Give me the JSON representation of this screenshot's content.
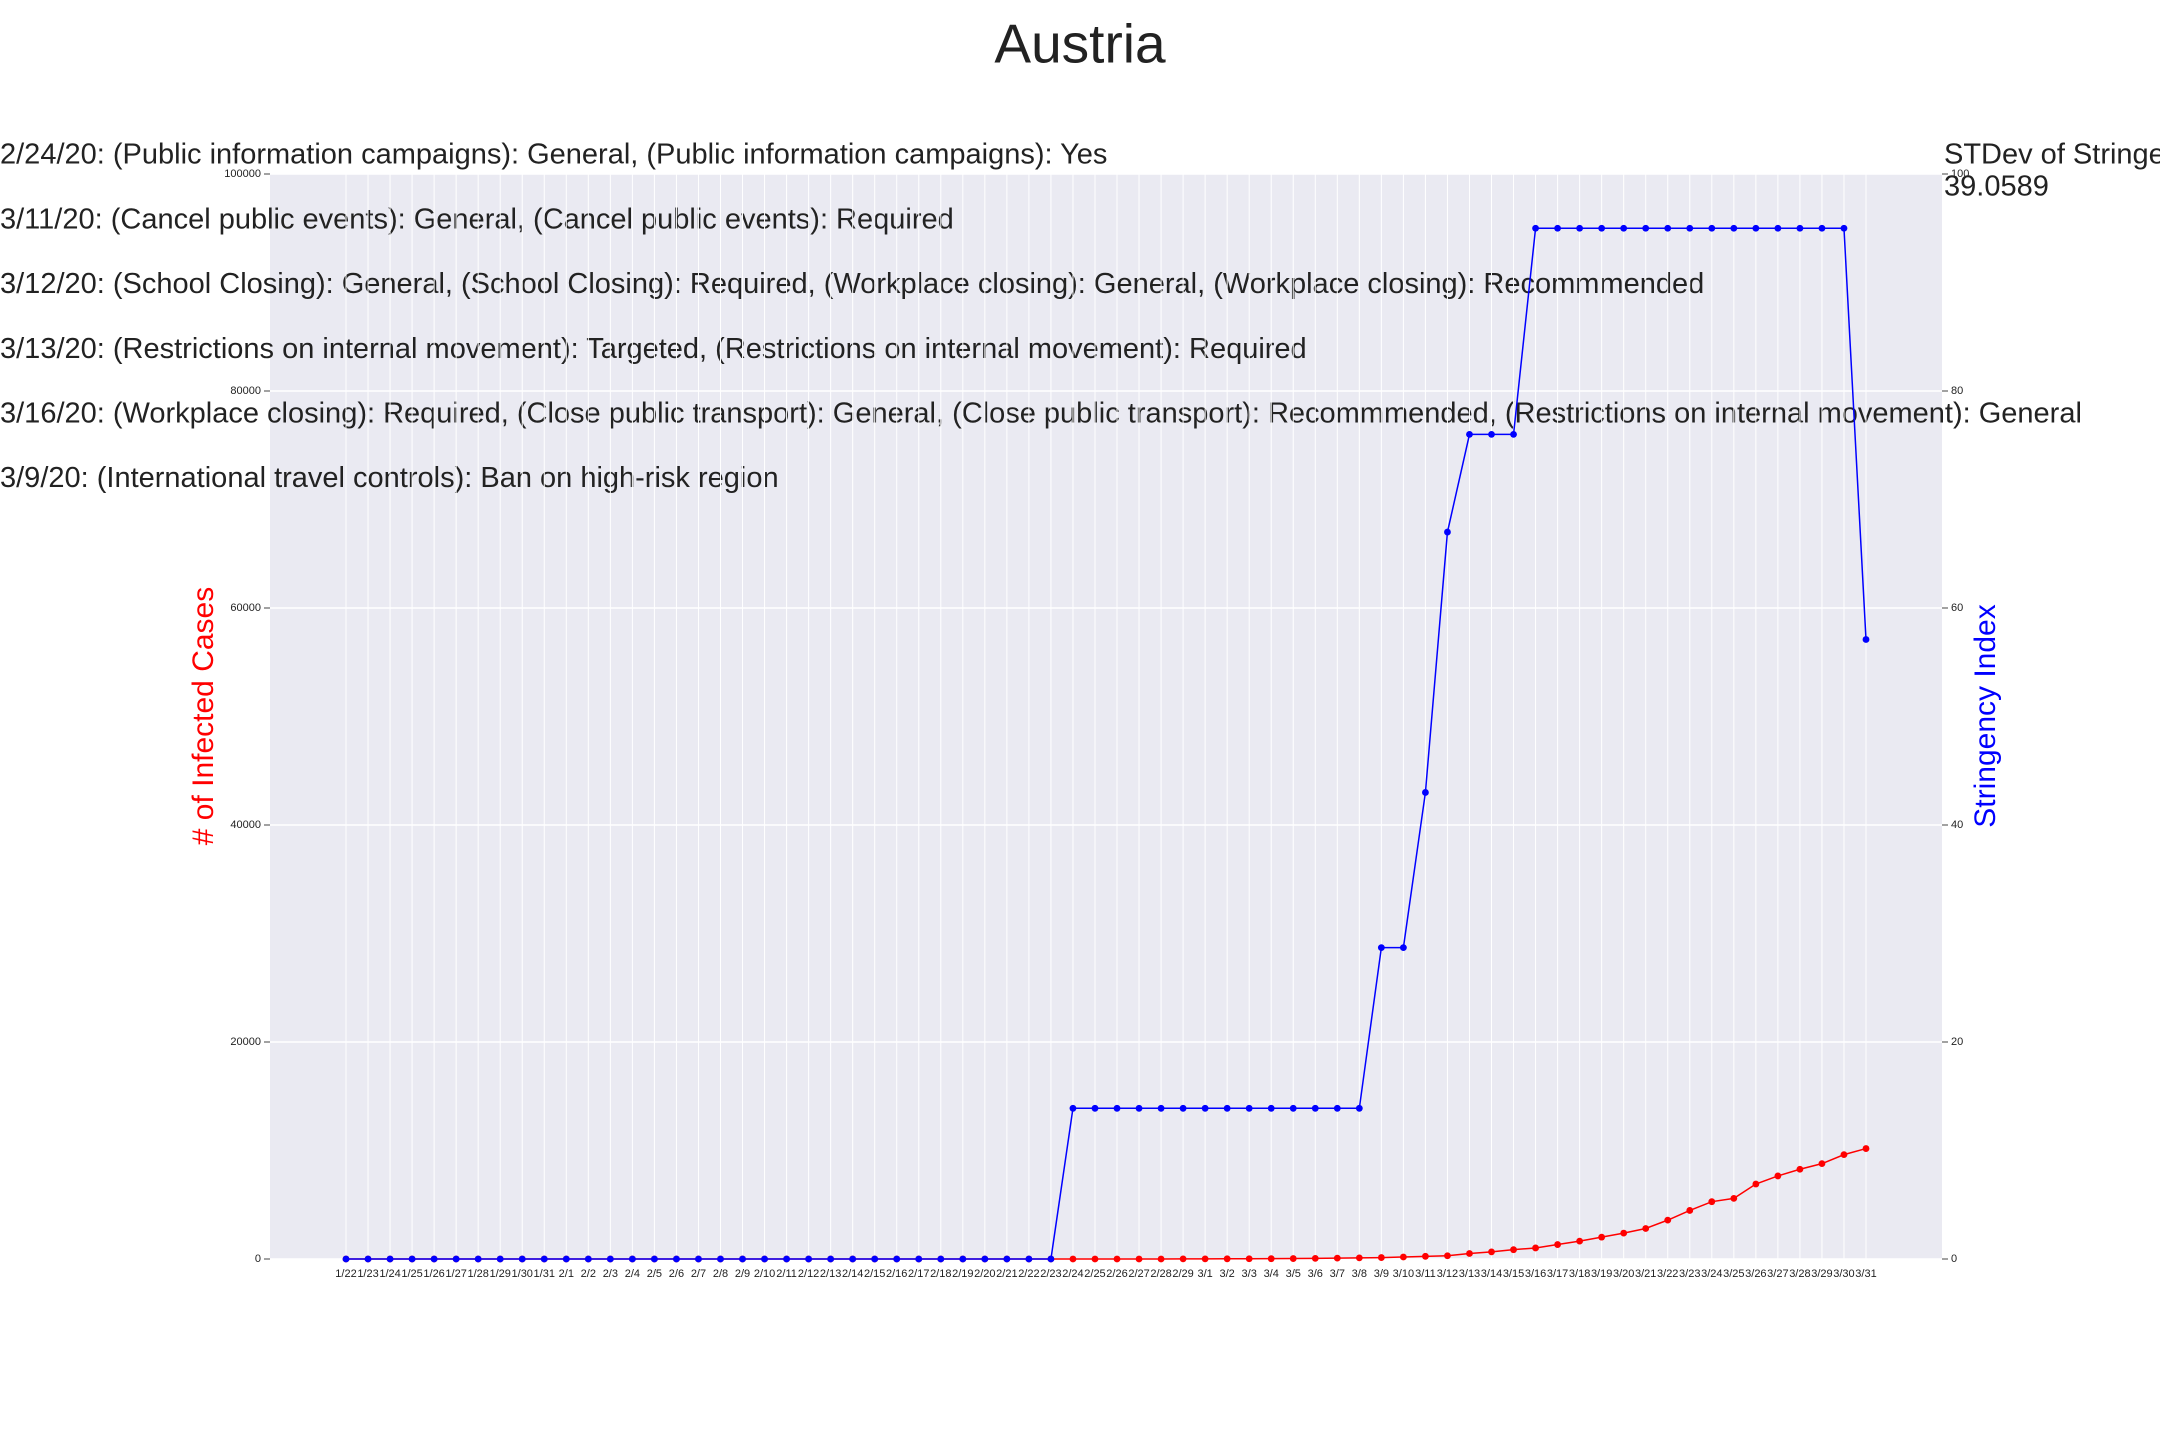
{
  "chart_data": {
    "type": "line",
    "title": "Austria",
    "y_label": "# of Infected Cases",
    "y2_label": "Stringency Index",
    "annotations": [
      "2/24/20: (Public information campaigns): General, (Public information campaigns): Yes",
      "3/11/20: (Cancel public events): General, (Cancel public events): Required",
      "3/12/20: (School Closing): General, (School Closing): Required, (Workplace closing): General, (Workplace closing): Recommmended",
      "3/13/20: (Restrictions on internal movement): Targeted, (Restrictions on internal movement): Required",
      "3/16/20: (Workplace closing): Required, (Close public transport): General, (Close public transport): Recommmended, (Restrictions on internal movement): General",
      "3/9/20: (International travel controls): Ban on high-risk region"
    ],
    "stdev_label": "STDev of Stringency Index",
    "stdev_value": "39.0589",
    "categories": [
      "1/22",
      "1/23",
      "1/24",
      "1/25",
      "1/26",
      "1/27",
      "1/28",
      "1/29",
      "1/30",
      "1/31",
      "2/1",
      "2/2",
      "2/3",
      "2/4",
      "2/5",
      "2/6",
      "2/7",
      "2/8",
      "2/9",
      "2/10",
      "2/11",
      "2/12",
      "2/13",
      "2/14",
      "2/15",
      "2/16",
      "2/17",
      "2/18",
      "2/19",
      "2/20",
      "2/21",
      "2/22",
      "2/23",
      "2/24",
      "2/25",
      "2/26",
      "2/27",
      "2/28",
      "2/29",
      "3/1",
      "3/2",
      "3/3",
      "3/4",
      "3/5",
      "3/6",
      "3/7",
      "3/8",
      "3/9",
      "3/10",
      "3/11",
      "3/12",
      "3/13",
      "3/14",
      "3/15",
      "3/16",
      "3/17",
      "3/18",
      "3/19",
      "3/20",
      "3/21",
      "3/22",
      "3/23",
      "3/24",
      "3/25",
      "3/26",
      "3/27",
      "3/28",
      "3/29",
      "3/30",
      "3/31"
    ],
    "series": [
      {
        "name": "# of Infected Cases",
        "color": "#ff0000",
        "axis": "y",
        "values": [
          0,
          0,
          0,
          0,
          0,
          0,
          0,
          0,
          0,
          0,
          0,
          0,
          0,
          0,
          0,
          0,
          0,
          0,
          0,
          0,
          0,
          0,
          0,
          0,
          0,
          0,
          0,
          0,
          0,
          0,
          0,
          0,
          0,
          0,
          2,
          2,
          3,
          3,
          9,
          14,
          18,
          21,
          29,
          41,
          55,
          79,
          104,
          131,
          182,
          246,
          302,
          504,
          655,
          860,
          1018,
          1332,
          1646,
          2013,
          2388,
          2814,
          3582,
          4474,
          5283,
          5588,
          6909,
          7657,
          8271,
          8788,
          9618,
          10180
        ]
      },
      {
        "name": "Stringency Index",
        "color": "#0000ff",
        "axis": "y2",
        "values": [
          0,
          0,
          0,
          0,
          0,
          0,
          0,
          0,
          0,
          0,
          0,
          0,
          0,
          0,
          0,
          0,
          0,
          0,
          0,
          0,
          0,
          0,
          0,
          0,
          0,
          0,
          0,
          0,
          0,
          0,
          0,
          0,
          0,
          13.89,
          13.89,
          13.89,
          13.89,
          13.89,
          13.89,
          13.89,
          13.89,
          13.89,
          13.89,
          13.89,
          13.89,
          13.89,
          13.89,
          28.7,
          28.7,
          43,
          67,
          76,
          76,
          76,
          95,
          95,
          95,
          95,
          95,
          95,
          95,
          95,
          95,
          95,
          95,
          95,
          95,
          95,
          95,
          57.1
        ]
      }
    ],
    "ylim": [
      0,
      100000
    ],
    "yticks": [
      0,
      20000,
      40000,
      60000,
      80000,
      100000
    ],
    "y2lim": [
      0,
      100
    ],
    "y2ticks": [
      0,
      20,
      40,
      60,
      80,
      100
    ],
    "grid": true
  }
}
